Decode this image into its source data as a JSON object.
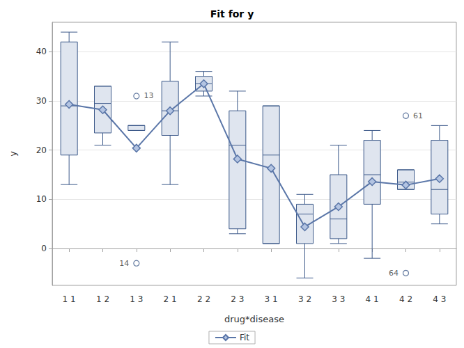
{
  "chart_data": {
    "type": "boxplot",
    "title": "Fit for y",
    "x_label": "drug*disease",
    "y_label": "y",
    "categories": [
      "1 1",
      "1 2",
      "1 3",
      "2 1",
      "2 2",
      "2 3",
      "3 1",
      "3 2",
      "3 3",
      "4 1",
      "4 2",
      "4 3"
    ],
    "boxes": [
      [
        13,
        19,
        29,
        42,
        44
      ],
      [
        21,
        23.5,
        29.5,
        33,
        33
      ],
      [
        24,
        24,
        25,
        25,
        25
      ],
      [
        13,
        23,
        28,
        34,
        42
      ],
      [
        31,
        32,
        33.5,
        35,
        36
      ],
      [
        3,
        4,
        21,
        28,
        32
      ],
      [
        1,
        1,
        19,
        29,
        29
      ],
      [
        -6,
        1,
        7,
        9,
        11
      ],
      [
        1,
        2,
        6,
        15,
        21
      ],
      [
        -2,
        9,
        15,
        22,
        24
      ],
      [
        12,
        12,
        13.5,
        16,
        16
      ],
      [
        5,
        7,
        12,
        22,
        25
      ]
    ],
    "color": "#3d5a8a",
    "series": [
      {
        "name": "Fit",
        "type": "line",
        "marker": "diamond",
        "color": "#5a76a8",
        "values": [
          29.3,
          28.2,
          20.4,
          28,
          33.5,
          18.2,
          16.3,
          4.4,
          8.5,
          13.6,
          12.9,
          14.2
        ]
      }
    ],
    "outliers": [
      {
        "category": "1 3",
        "value": 31,
        "label": "13"
      },
      {
        "category": "1 3",
        "value": -3,
        "label": "14"
      },
      {
        "category": "4 2",
        "value": 27,
        "label": "61"
      },
      {
        "category": "4 2",
        "value": -5,
        "label": "64"
      }
    ],
    "ylim": [
      -7.5,
      46
    ],
    "yticks": [
      0,
      10,
      20,
      30,
      40
    ],
    "grid": true,
    "legend": "bottom"
  }
}
